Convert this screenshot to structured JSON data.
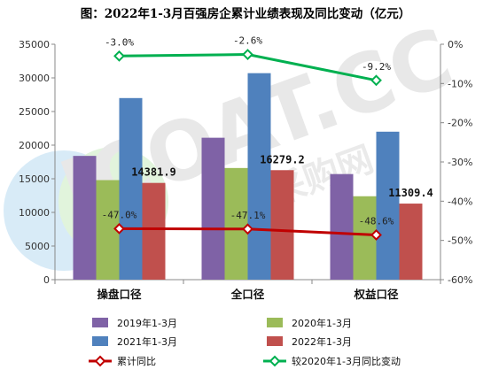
{
  "title": "图：2022年1-3月百强房企累计业绩表现及同比变动（亿元）",
  "watermark": "ICOAT.CC 涂料采购网",
  "chart_data": {
    "type": "bar",
    "categories": [
      "操盘口径",
      "全口径",
      "权益口径"
    ],
    "series": [
      {
        "name": "2019年1-3月",
        "color": "#7F62A6",
        "values": [
          18400,
          21100,
          15700
        ]
      },
      {
        "name": "2020年1-3月",
        "color": "#9BBB59",
        "values": [
          14800,
          16600,
          12400
        ]
      },
      {
        "name": "2021年1-3月",
        "color": "#4F81BD",
        "values": [
          27000,
          30700,
          22000
        ]
      },
      {
        "name": "2022年1-3月",
        "color": "#C0504D",
        "values": [
          14381.9,
          16279.2,
          11309.4
        ]
      }
    ],
    "lines": [
      {
        "name": "累计同比",
        "color": "#C00000",
        "axis": "right",
        "values": [
          -47.0,
          -47.1,
          -48.6
        ],
        "labels": [
          "-47.0%",
          "-47.1%",
          "-48.6%"
        ]
      },
      {
        "name": "较2020年1-3月同比变动",
        "color": "#00B050",
        "axis": "right",
        "values": [
          -3.0,
          -2.6,
          -9.2
        ],
        "labels": [
          "-3.0%",
          "-2.6%",
          "-9.2%"
        ]
      }
    ],
    "bar_labels": [
      "14381.9",
      "16279.2",
      "11309.4"
    ],
    "ylim": [
      0,
      35000
    ],
    "yticks": [
      "0",
      "5000",
      "10000",
      "15000",
      "20000",
      "25000",
      "30000",
      "35000"
    ],
    "y2lim": [
      -60,
      0
    ],
    "y2ticks": [
      "-60%",
      "-50%",
      "-40%",
      "-30%",
      "-20%",
      "-10%",
      "0%"
    ],
    "legend_position": "bottom"
  }
}
